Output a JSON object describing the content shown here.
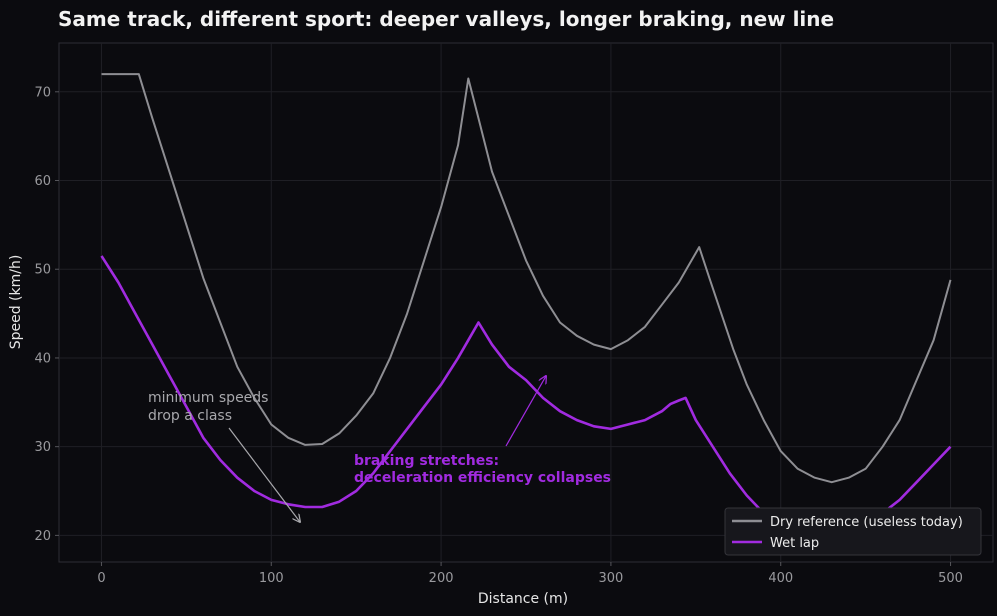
{
  "chart_data": {
    "type": "line",
    "title": "Same track, different sport: deeper valleys, longer braking, new line",
    "xlabel": "Distance (m)",
    "ylabel": "Speed (km/h)",
    "xlim": [
      -25,
      525
    ],
    "ylim": [
      17,
      75.5
    ],
    "xticks": [
      0,
      100,
      200,
      300,
      400,
      500
    ],
    "yticks": [
      20,
      30,
      40,
      50,
      60,
      70
    ],
    "grid": true,
    "legend_position": "bottom-right",
    "background": "#0b0b0f",
    "series": [
      {
        "name": "Dry reference (useless today)",
        "color": "#8e8e93",
        "x": [
          0,
          10,
          22,
          30,
          40,
          50,
          60,
          70,
          80,
          90,
          100,
          110,
          120,
          130,
          140,
          150,
          160,
          170,
          180,
          190,
          200,
          210,
          216,
          222,
          230,
          240,
          250,
          260,
          270,
          280,
          290,
          300,
          310,
          320,
          330,
          340,
          346,
          352,
          358,
          365,
          372,
          380,
          390,
          400,
          410,
          420,
          430,
          440,
          450,
          460,
          470,
          480,
          490,
          500
        ],
        "values": [
          72,
          72,
          72,
          67,
          61,
          55,
          49,
          44,
          39,
          35.5,
          32.5,
          31,
          30.2,
          30.3,
          31.5,
          33.5,
          36,
          40,
          45,
          51,
          57,
          64,
          71.5,
          67,
          61,
          56,
          51,
          47,
          44,
          42.5,
          41.5,
          41,
          42,
          43.5,
          46,
          48.5,
          50.5,
          52.5,
          49,
          45,
          41,
          37,
          33,
          29.5,
          27.5,
          26.5,
          26,
          26.5,
          27.5,
          30,
          33,
          37.5,
          42,
          48.8
        ]
      },
      {
        "name": "Wet lap",
        "color": "#a12be0",
        "x": [
          0,
          10,
          20,
          30,
          40,
          50,
          60,
          70,
          80,
          90,
          100,
          110,
          120,
          130,
          140,
          150,
          160,
          170,
          180,
          190,
          200,
          210,
          216,
          222,
          230,
          240,
          250,
          260,
          270,
          280,
          290,
          300,
          310,
          320,
          330,
          335,
          340,
          344,
          350,
          360,
          370,
          380,
          390,
          400,
          410,
          420,
          430,
          440,
          450,
          460,
          470,
          480,
          490,
          500
        ],
        "values": [
          51.5,
          48.5,
          45,
          41.5,
          38,
          34.5,
          31,
          28.5,
          26.5,
          25,
          24,
          23.5,
          23.2,
          23.2,
          23.8,
          25,
          27,
          29.5,
          32,
          34.5,
          37,
          40,
          42,
          44,
          41.5,
          39,
          37.5,
          35.5,
          34,
          33,
          32.3,
          32,
          32.5,
          33,
          34,
          34.8,
          35.2,
          35.5,
          33,
          30,
          27,
          24.5,
          22.5,
          21.5,
          21,
          20.3,
          20.3,
          20.8,
          21.5,
          22.5,
          24,
          26,
          28,
          30
        ]
      }
    ],
    "annotations": [
      {
        "text": [
          "minimum speeds",
          "drop a class"
        ],
        "color": "#a8a8ac",
        "arrow_to": [
          120,
          21
        ]
      },
      {
        "text": [
          "braking stretches:",
          "deceleration efficiency collapses"
        ],
        "color": "#a12be0",
        "arrow_to": [
          264,
          38
        ]
      }
    ]
  }
}
